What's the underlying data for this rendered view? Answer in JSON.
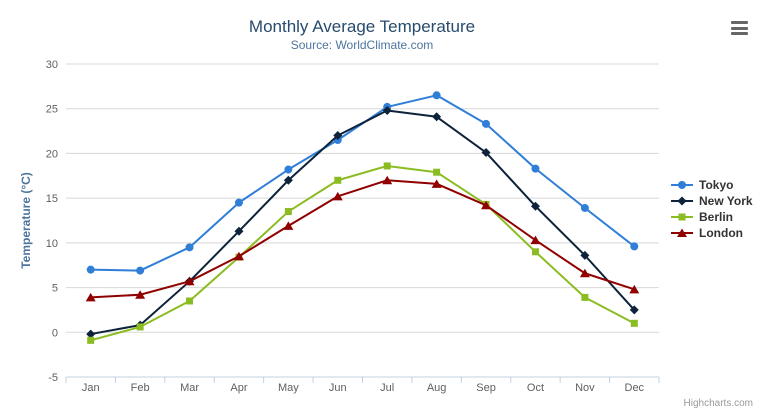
{
  "chart_data": {
    "type": "line",
    "title": "Monthly Average Temperature",
    "subtitle": "Source: WorldClimate.com",
    "categories": [
      "Jan",
      "Feb",
      "Mar",
      "Apr",
      "May",
      "Jun",
      "Jul",
      "Aug",
      "Sep",
      "Oct",
      "Nov",
      "Dec"
    ],
    "series": [
      {
        "name": "Tokyo",
        "color": "#2f7ed8",
        "marker": "circle",
        "values": [
          7.0,
          6.9,
          9.5,
          14.5,
          18.2,
          21.5,
          25.2,
          26.5,
          23.3,
          18.3,
          13.9,
          9.6
        ]
      },
      {
        "name": "New York",
        "color": "#0d233a",
        "marker": "diamond",
        "values": [
          -0.2,
          0.8,
          5.7,
          11.3,
          17.0,
          22.0,
          24.8,
          24.1,
          20.1,
          14.1,
          8.6,
          2.5
        ]
      },
      {
        "name": "Berlin",
        "color": "#8bbc21",
        "marker": "square",
        "values": [
          -0.9,
          0.6,
          3.5,
          8.4,
          13.5,
          17.0,
          18.6,
          17.9,
          14.3,
          9.0,
          3.9,
          1.0
        ]
      },
      {
        "name": "London",
        "color": "#910000",
        "marker": "triangle",
        "values": [
          3.9,
          4.2,
          5.7,
          8.5,
          11.9,
          15.2,
          17.0,
          16.6,
          14.2,
          10.3,
          6.6,
          4.8
        ]
      }
    ],
    "xlabel": "",
    "ylabel": "Temperature (°C)",
    "ylim": [
      -5,
      30
    ],
    "ytick_step": 5,
    "grid": true,
    "legend_position": "right",
    "credits": "Highcharts.com",
    "colors": {
      "grid": "#d8d8d8",
      "axis_line": "#c0d0e0",
      "title": "#274b6d",
      "subtitle": "#4d759e",
      "axis_labels": "#606060",
      "legend_text": "#333333"
    }
  }
}
